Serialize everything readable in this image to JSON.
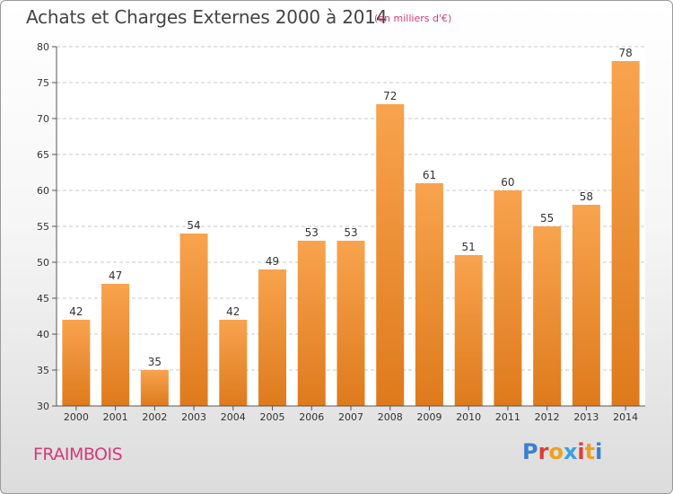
{
  "title": "Achats et Charges Externes 2000 à 2014",
  "unit_note": "(en milliers d'€)",
  "place": "FRAIMBOIS",
  "brand": {
    "text": "Proxiti",
    "letter_colors": [
      "#3a7fd5",
      "#e23c3c",
      "#f0a020",
      "#3aa0e0",
      "#e23c3c",
      "#f0a020",
      "#3a7fd5"
    ]
  },
  "colors": {
    "bar_light": "#f8a34e",
    "bar_dark": "#de7a1c",
    "accent": "#d63a7a"
  },
  "chart_data": {
    "type": "bar",
    "categories": [
      "2000",
      "2001",
      "2002",
      "2003",
      "2004",
      "2005",
      "2006",
      "2007",
      "2008",
      "2009",
      "2010",
      "2011",
      "2012",
      "2013",
      "2014"
    ],
    "values": [
      42,
      47,
      35,
      54,
      42,
      49,
      53,
      53,
      72,
      61,
      51,
      60,
      55,
      58,
      78
    ],
    "title": "Achats et Charges Externes 2000 à 2014",
    "ylim": [
      30,
      80
    ],
    "yticks": [
      30,
      35,
      40,
      45,
      50,
      55,
      60,
      65,
      70,
      75,
      80
    ],
    "grid": true
  }
}
